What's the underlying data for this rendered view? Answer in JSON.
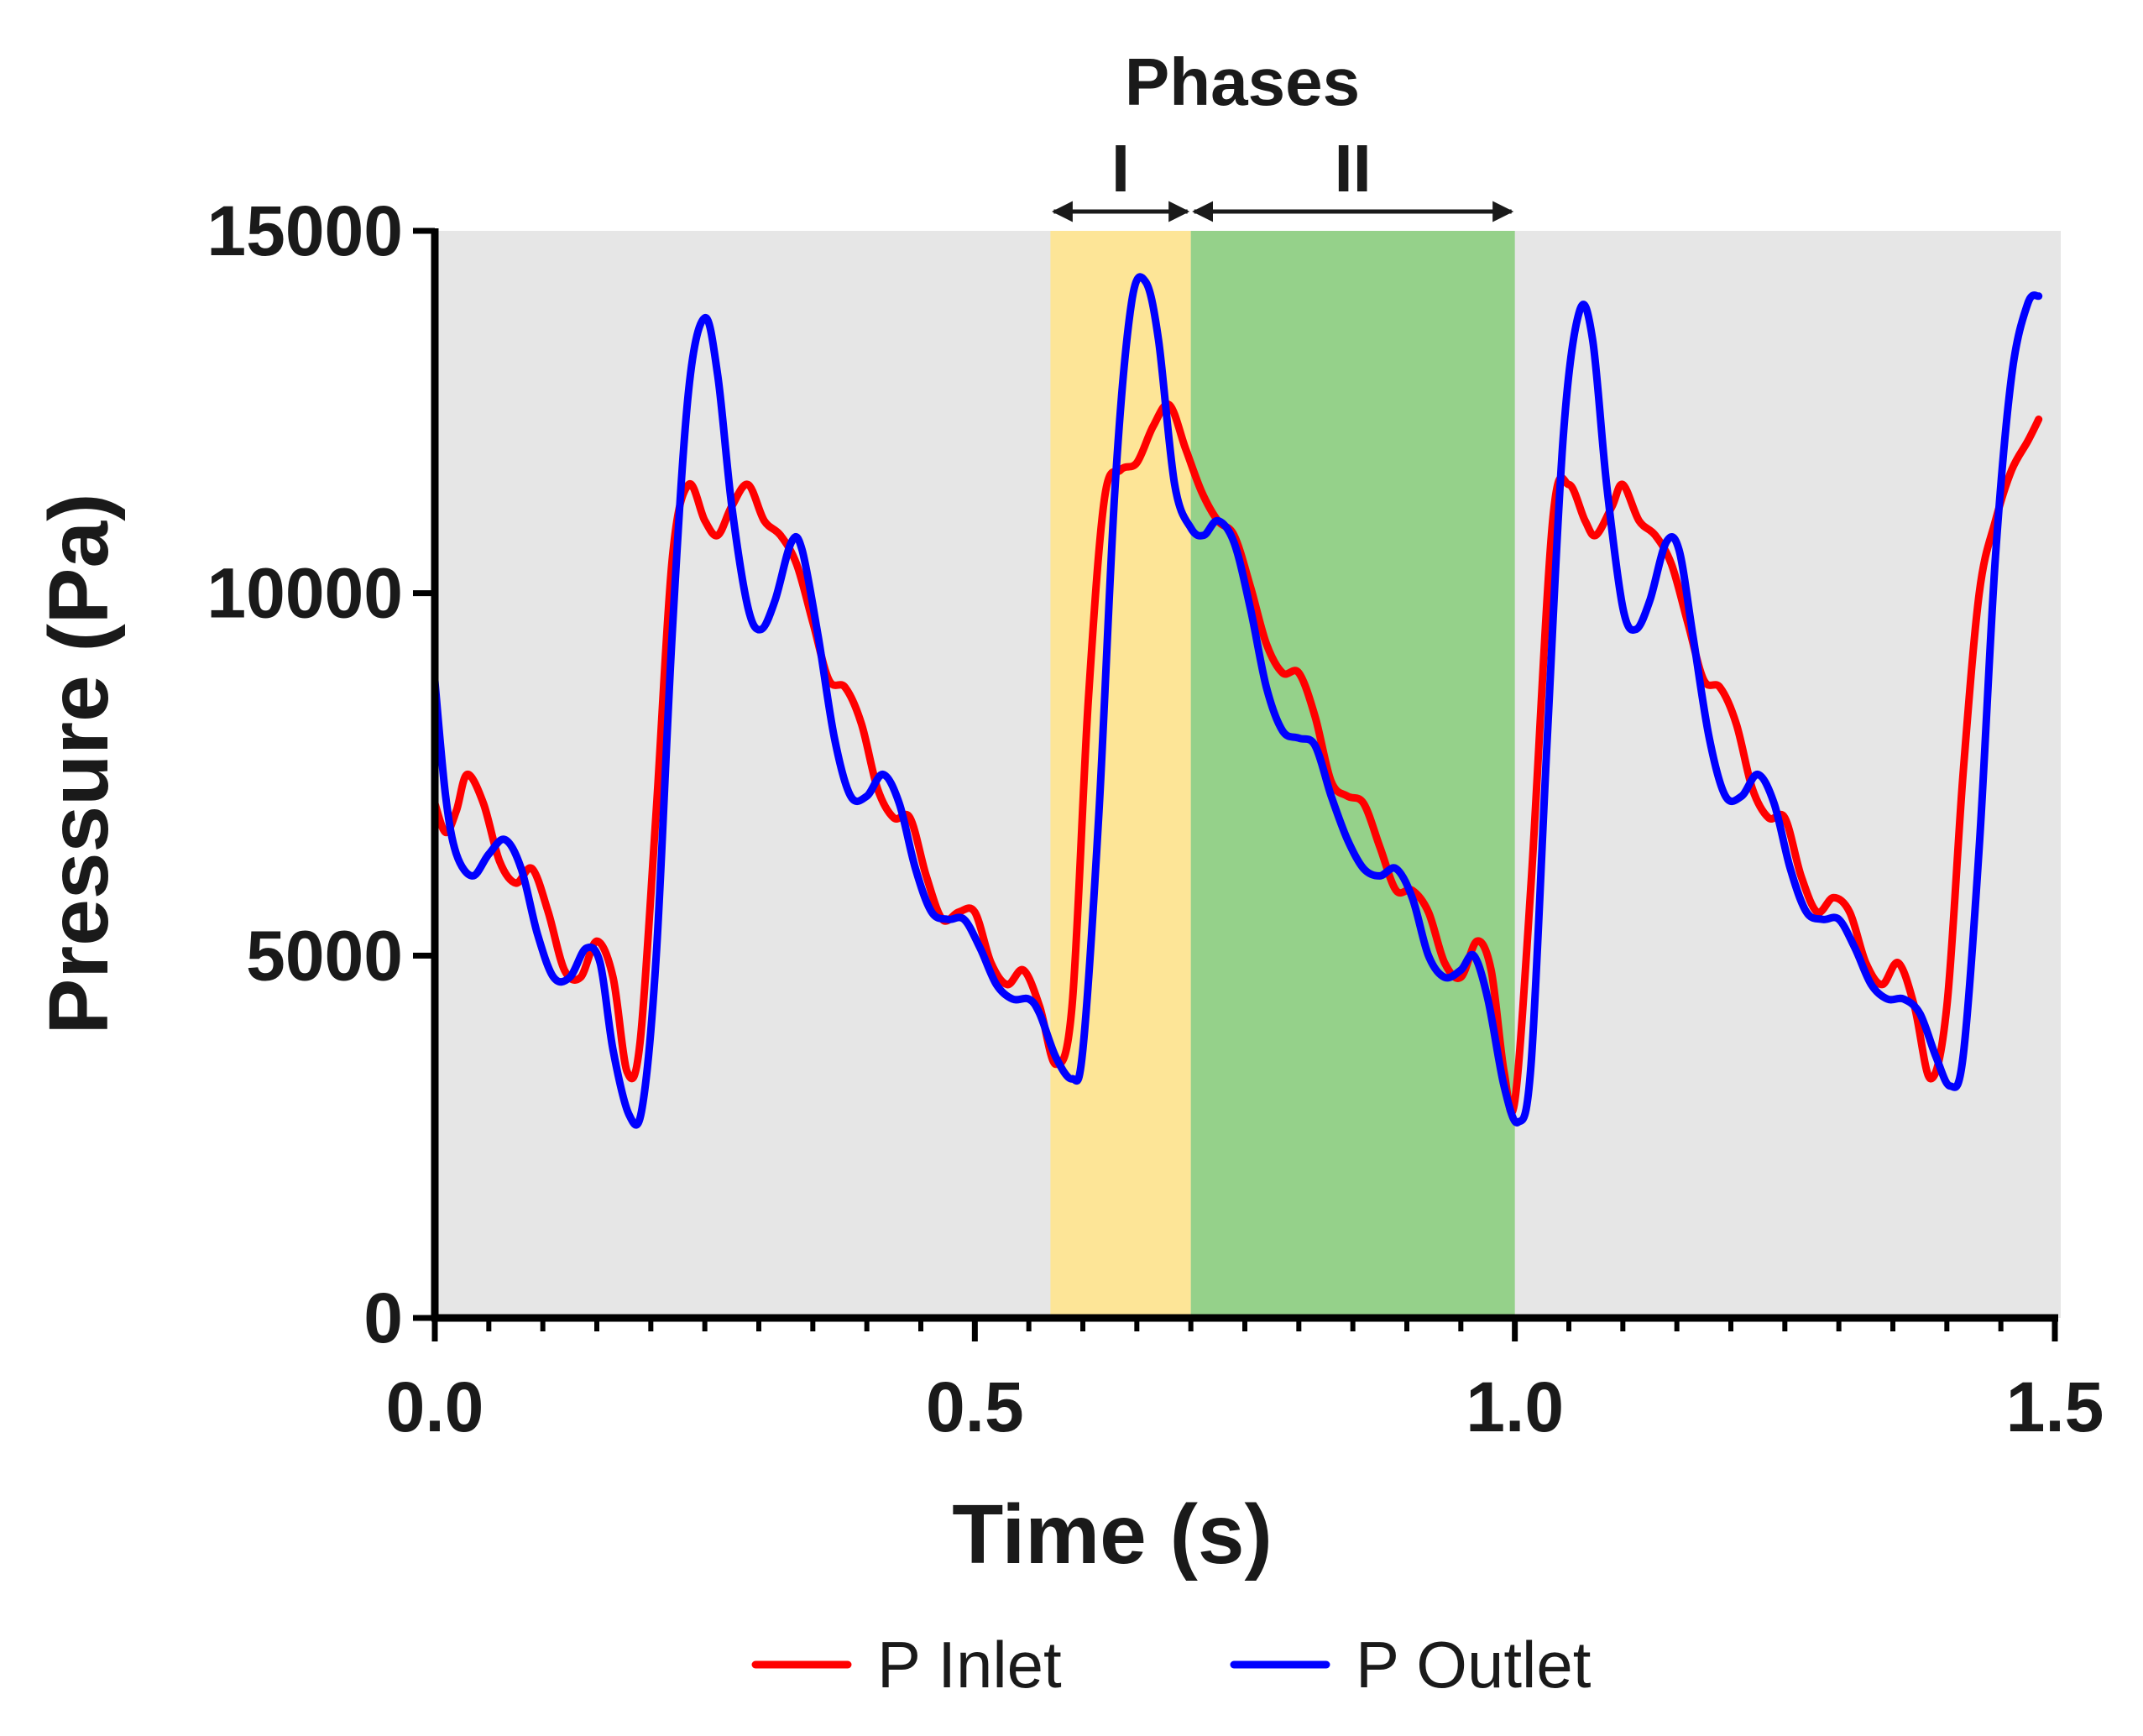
{
  "chart_data": {
    "type": "line",
    "xlabel": "Time (s)",
    "ylabel": "Pressure (Pa)",
    "xlim": [
      0,
      1.5
    ],
    "ylim": [
      0,
      15000
    ],
    "x_ticks": [
      0.0,
      0.5,
      1.0,
      1.5
    ],
    "x_tick_labels": [
      "0.0",
      "0.5",
      "1.0",
      "1.5"
    ],
    "x_minor_step": 0.05,
    "y_ticks": [
      0,
      5000,
      10000,
      15000
    ],
    "y_tick_labels": [
      "0",
      "5000",
      "10000",
      "15000"
    ],
    "background_color": "#e6e6e6",
    "phases": {
      "title": "Phases",
      "regions": [
        {
          "label": "I",
          "start": 0.57,
          "end": 0.7,
          "color": "#fde597"
        },
        {
          "label": "II",
          "start": 0.7,
          "end": 1.0,
          "color": "#95d18a"
        }
      ]
    },
    "series": [
      {
        "name": "P Inlet",
        "color": "#ff0000",
        "points": [
          [
            0.0,
            7100
          ],
          [
            0.01,
            6700
          ],
          [
            0.02,
            7000
          ],
          [
            0.03,
            7500
          ],
          [
            0.045,
            7100
          ],
          [
            0.06,
            6300
          ],
          [
            0.075,
            6000
          ],
          [
            0.09,
            6200
          ],
          [
            0.105,
            5600
          ],
          [
            0.12,
            4800
          ],
          [
            0.135,
            4700
          ],
          [
            0.15,
            5200
          ],
          [
            0.165,
            4700
          ],
          [
            0.178,
            3400
          ],
          [
            0.19,
            3800
          ],
          [
            0.205,
            7000
          ],
          [
            0.22,
            10500
          ],
          [
            0.235,
            11500
          ],
          [
            0.25,
            11000
          ],
          [
            0.262,
            10800
          ],
          [
            0.275,
            11200
          ],
          [
            0.29,
            11500
          ],
          [
            0.305,
            11000
          ],
          [
            0.32,
            10800
          ],
          [
            0.335,
            10400
          ],
          [
            0.35,
            9600
          ],
          [
            0.365,
            8800
          ],
          [
            0.38,
            8700
          ],
          [
            0.395,
            8200
          ],
          [
            0.41,
            7300
          ],
          [
            0.425,
            6900
          ],
          [
            0.44,
            6900
          ],
          [
            0.455,
            6100
          ],
          [
            0.47,
            5500
          ],
          [
            0.485,
            5600
          ],
          [
            0.5,
            5600
          ],
          [
            0.515,
            4900
          ],
          [
            0.53,
            4600
          ],
          [
            0.545,
            4800
          ],
          [
            0.56,
            4300
          ],
          [
            0.575,
            3500
          ],
          [
            0.59,
            4300
          ],
          [
            0.605,
            8500
          ],
          [
            0.62,
            11300
          ],
          [
            0.635,
            11700
          ],
          [
            0.65,
            11800
          ],
          [
            0.665,
            12300
          ],
          [
            0.68,
            12600
          ],
          [
            0.695,
            12000
          ],
          [
            0.71,
            11400
          ],
          [
            0.725,
            11000
          ],
          [
            0.74,
            10800
          ],
          [
            0.755,
            10100
          ],
          [
            0.77,
            9300
          ],
          [
            0.785,
            8900
          ],
          [
            0.8,
            8900
          ],
          [
            0.815,
            8300
          ],
          [
            0.83,
            7400
          ],
          [
            0.845,
            7200
          ],
          [
            0.86,
            7100
          ],
          [
            0.875,
            6500
          ],
          [
            0.89,
            5900
          ],
          [
            0.905,
            5900
          ],
          [
            0.92,
            5600
          ],
          [
            0.935,
            4900
          ],
          [
            0.95,
            4700
          ],
          [
            0.965,
            5200
          ],
          [
            0.978,
            4800
          ],
          [
            0.99,
            3400
          ],
          [
            1.0,
            3000
          ],
          [
            1.015,
            6000
          ],
          [
            1.035,
            11000
          ],
          [
            1.05,
            11500
          ],
          [
            1.065,
            11000
          ],
          [
            1.075,
            10800
          ],
          [
            1.09,
            11200
          ],
          [
            1.1,
            11500
          ],
          [
            1.115,
            11000
          ],
          [
            1.13,
            10800
          ],
          [
            1.145,
            10400
          ],
          [
            1.16,
            9600
          ],
          [
            1.175,
            8800
          ],
          [
            1.19,
            8700
          ],
          [
            1.205,
            8200
          ],
          [
            1.22,
            7300
          ],
          [
            1.235,
            6900
          ],
          [
            1.25,
            6900
          ],
          [
            1.265,
            6100
          ],
          [
            1.28,
            5600
          ],
          [
            1.295,
            5800
          ],
          [
            1.31,
            5600
          ],
          [
            1.325,
            4900
          ],
          [
            1.34,
            4600
          ],
          [
            1.355,
            4900
          ],
          [
            1.37,
            4300
          ],
          [
            1.385,
            3300
          ],
          [
            1.4,
            4300
          ],
          [
            1.415,
            7500
          ],
          [
            1.43,
            10000
          ],
          [
            1.445,
            11000
          ],
          [
            1.46,
            11700
          ],
          [
            1.475,
            12100
          ],
          [
            1.485,
            12400
          ]
        ]
      },
      {
        "name": "P Outlet",
        "color": "#0000ff",
        "points": [
          [
            0.0,
            8800
          ],
          [
            0.01,
            7200
          ],
          [
            0.02,
            6400
          ],
          [
            0.035,
            6100
          ],
          [
            0.05,
            6400
          ],
          [
            0.065,
            6600
          ],
          [
            0.08,
            6200
          ],
          [
            0.095,
            5300
          ],
          [
            0.11,
            4700
          ],
          [
            0.125,
            4700
          ],
          [
            0.14,
            5100
          ],
          [
            0.153,
            4900
          ],
          [
            0.165,
            3700
          ],
          [
            0.18,
            2800
          ],
          [
            0.192,
            2900
          ],
          [
            0.205,
            5000
          ],
          [
            0.22,
            9500
          ],
          [
            0.235,
            12800
          ],
          [
            0.25,
            13800
          ],
          [
            0.262,
            13000
          ],
          [
            0.275,
            11200
          ],
          [
            0.29,
            9800
          ],
          [
            0.302,
            9500
          ],
          [
            0.315,
            9900
          ],
          [
            0.33,
            10700
          ],
          [
            0.34,
            10600
          ],
          [
            0.355,
            9400
          ],
          [
            0.37,
            8000
          ],
          [
            0.385,
            7200
          ],
          [
            0.4,
            7200
          ],
          [
            0.415,
            7500
          ],
          [
            0.43,
            7100
          ],
          [
            0.445,
            6200
          ],
          [
            0.46,
            5600
          ],
          [
            0.475,
            5500
          ],
          [
            0.49,
            5500
          ],
          [
            0.505,
            5100
          ],
          [
            0.52,
            4600
          ],
          [
            0.535,
            4400
          ],
          [
            0.55,
            4400
          ],
          [
            0.56,
            4200
          ],
          [
            0.575,
            3600
          ],
          [
            0.59,
            3300
          ],
          [
            0.6,
            3700
          ],
          [
            0.615,
            7000
          ],
          [
            0.63,
            11500
          ],
          [
            0.645,
            14000
          ],
          [
            0.658,
            14300
          ],
          [
            0.67,
            13500
          ],
          [
            0.685,
            11500
          ],
          [
            0.7,
            10900
          ],
          [
            0.712,
            10800
          ],
          [
            0.725,
            11000
          ],
          [
            0.74,
            10700
          ],
          [
            0.755,
            9800
          ],
          [
            0.77,
            8700
          ],
          [
            0.785,
            8100
          ],
          [
            0.8,
            8000
          ],
          [
            0.815,
            7900
          ],
          [
            0.83,
            7200
          ],
          [
            0.845,
            6600
          ],
          [
            0.86,
            6200
          ],
          [
            0.875,
            6100
          ],
          [
            0.89,
            6200
          ],
          [
            0.905,
            5800
          ],
          [
            0.92,
            5000
          ],
          [
            0.935,
            4700
          ],
          [
            0.95,
            4800
          ],
          [
            0.962,
            5000
          ],
          [
            0.975,
            4400
          ],
          [
            0.99,
            3200
          ],
          [
            1.003,
            2700
          ],
          [
            1.015,
            3500
          ],
          [
            1.03,
            8000
          ],
          [
            1.045,
            12200
          ],
          [
            1.06,
            13900
          ],
          [
            1.072,
            13500
          ],
          [
            1.085,
            11500
          ],
          [
            1.1,
            9800
          ],
          [
            1.112,
            9500
          ],
          [
            1.125,
            9900
          ],
          [
            1.14,
            10700
          ],
          [
            1.152,
            10600
          ],
          [
            1.165,
            9400
          ],
          [
            1.18,
            8000
          ],
          [
            1.195,
            7200
          ],
          [
            1.21,
            7200
          ],
          [
            1.225,
            7500
          ],
          [
            1.24,
            7100
          ],
          [
            1.255,
            6200
          ],
          [
            1.27,
            5600
          ],
          [
            1.285,
            5500
          ],
          [
            1.3,
            5500
          ],
          [
            1.315,
            5100
          ],
          [
            1.33,
            4600
          ],
          [
            1.345,
            4400
          ],
          [
            1.36,
            4400
          ],
          [
            1.375,
            4200
          ],
          [
            1.39,
            3600
          ],
          [
            1.403,
            3200
          ],
          [
            1.415,
            3600
          ],
          [
            1.43,
            6500
          ],
          [
            1.445,
            10500
          ],
          [
            1.46,
            13000
          ],
          [
            1.475,
            14000
          ],
          [
            1.485,
            14100
          ]
        ]
      }
    ],
    "legend": {
      "position": "bottom-center",
      "entries": [
        "P Inlet",
        "P Outlet"
      ]
    }
  }
}
